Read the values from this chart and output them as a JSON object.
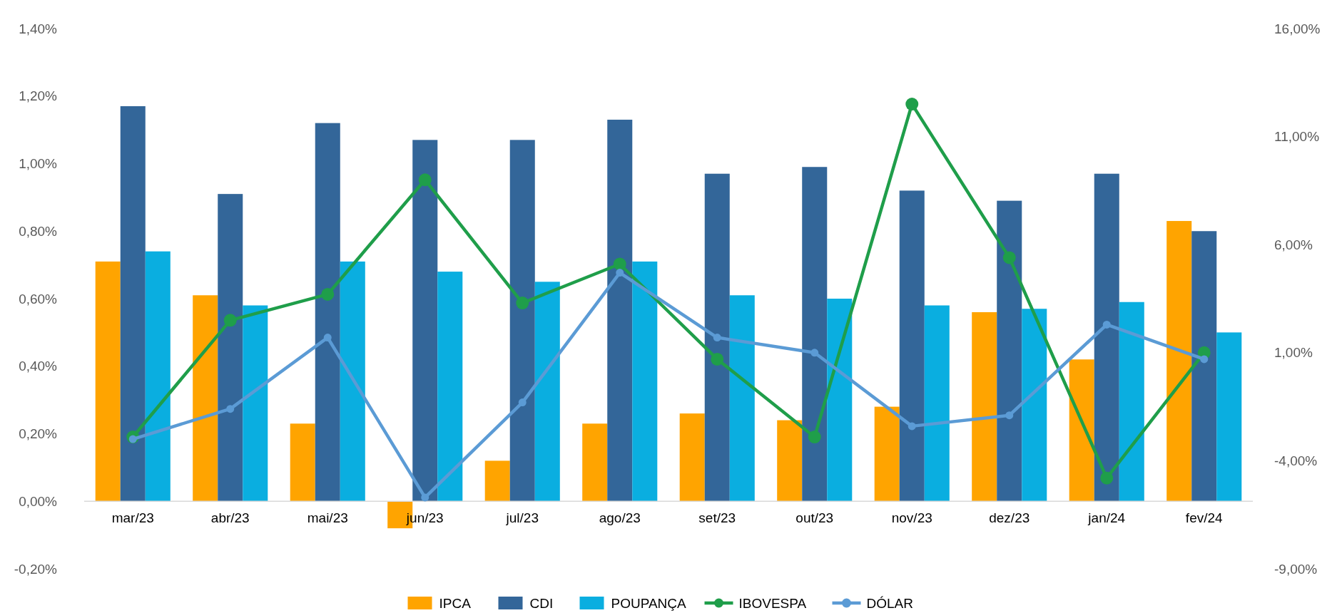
{
  "chart_data": {
    "type": "bar",
    "categories": [
      "mar/23",
      "abr/23",
      "mai/23",
      "jun/23",
      "jul/23",
      "ago/23",
      "set/23",
      "out/23",
      "nov/23",
      "dez/23",
      "jan/24",
      "fev/24"
    ],
    "series": [
      {
        "name": "IPCA",
        "color": "#ffa400",
        "values": [
          0.71,
          0.61,
          0.23,
          -0.08,
          0.12,
          0.23,
          0.26,
          0.24,
          0.28,
          0.56,
          0.42,
          0.83
        ]
      },
      {
        "name": "CDI",
        "color": "#336699",
        "values": [
          1.17,
          0.91,
          1.12,
          1.07,
          1.07,
          1.13,
          0.97,
          0.99,
          0.92,
          0.89,
          0.97,
          0.8
        ]
      },
      {
        "name": "POUPANÇA",
        "color": "#0aaee0",
        "values": [
          0.74,
          0.58,
          0.71,
          0.68,
          0.65,
          0.71,
          0.61,
          0.6,
          0.58,
          0.57,
          0.59,
          0.5
        ]
      },
      {
        "name": "IBOVESPA",
        "color": "#1f9e4a",
        "type": "line",
        "axis": "y2",
        "values": [
          -2.9,
          2.5,
          3.7,
          9.0,
          3.3,
          5.1,
          0.7,
          -2.9,
          12.5,
          5.4,
          -4.8,
          1.0
        ]
      },
      {
        "name": "DÓLAR",
        "color": "#5b9bd5",
        "type": "line",
        "axis": "y2",
        "values": [
          -3.0,
          -1.6,
          1.7,
          -5.7,
          -1.3,
          4.7,
          1.7,
          1.0,
          -2.4,
          -1.9,
          2.3,
          0.7
        ]
      }
    ],
    "ylim": [
      -0.2,
      1.4
    ],
    "yticks": [
      {
        "value": -0.2,
        "label": "-0,20%"
      },
      {
        "value": 0,
        "label": "0,00%"
      },
      {
        "value": 0.2,
        "label": "0,20%"
      },
      {
        "value": 0.4,
        "label": "0,40%"
      },
      {
        "value": 0.6,
        "label": "0,60%"
      },
      {
        "value": 0.8,
        "label": "0,80%"
      },
      {
        "value": 1.0,
        "label": "1,00%"
      },
      {
        "value": 1.2,
        "label": "1,20%"
      },
      {
        "value": 1.4,
        "label": "1,40%"
      }
    ],
    "y2lim": [
      -9,
      16
    ],
    "y2ticks": [
      {
        "value": -9,
        "label": "-9,00%"
      },
      {
        "value": -4,
        "label": "-4,00%"
      },
      {
        "value": 1,
        "label": "1,00%"
      },
      {
        "value": 6,
        "label": "6,00%"
      },
      {
        "value": 11,
        "label": "11,00%"
      },
      {
        "value": 16,
        "label": "16,00%"
      }
    ],
    "legend": "bottom",
    "marker": "circle",
    "grid": false
  }
}
